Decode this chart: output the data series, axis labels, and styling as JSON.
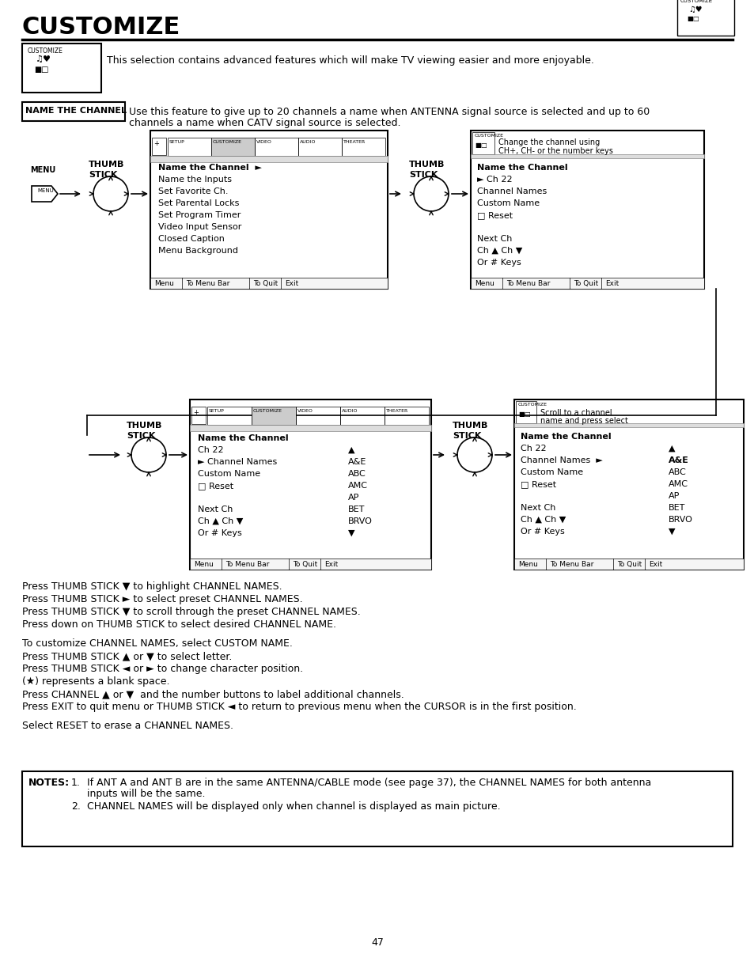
{
  "title": "CUSTOMIZE",
  "bg_color": "#ffffff",
  "text_color": "#000000",
  "page_number": "47",
  "intro_text": "This selection contains advanced features which will make TV viewing easier and more enjoyable.",
  "name_channel_label": "NAME THE CHANNEL",
  "name_channel_desc_1": "Use this feature to give up to 20 channels a name when ANTENNA signal source is selected and up to 60",
  "name_channel_desc_2": "channels a name when CATV signal source is selected.",
  "screen1_menu_items": [
    "Name the Channel  ►",
    "Name the Inputs",
    "Set Favorite Ch.",
    "Set Parental Locks",
    "Set Program Timer",
    "Video Input Sensor",
    "Closed Caption",
    "Menu Background"
  ],
  "screen1_tabs": [
    "SETUP",
    "CUSTOMIZE",
    "VIDEO",
    "AUDIO",
    "THEATER"
  ],
  "screen1_bottom_items": [
    "Menu",
    "To Menu Bar",
    "To Quit",
    "Exit"
  ],
  "screen2_title": "Name the Channel",
  "screen2_items": [
    "► Ch 22",
    "Channel Names",
    "Custom Name",
    "□ Reset",
    "",
    "Next Ch",
    "Ch ▲ Ch ▼",
    "Or # Keys"
  ],
  "screen2_header_1": "Change the channel using",
  "screen2_header_2": "CH+, CH- or the number keys",
  "screen2_bottom_items": [
    "Menu",
    "To Menu Bar",
    "To Quit",
    "Exit"
  ],
  "screen3_title": "Name the Channel",
  "screen3_items_left": [
    "Ch 22",
    "► Channel Names",
    "Custom Name",
    "□ Reset",
    "",
    "Next Ch",
    "Ch ▲ Ch ▼",
    "Or # Keys"
  ],
  "screen3_items_right": [
    "▲",
    "A&E",
    "ABC",
    "AMC",
    "AP",
    "BET",
    "BRVO",
    "▼"
  ],
  "screen3_bottom_items": [
    "Menu",
    "To Menu Bar",
    "To Quit",
    "Exit"
  ],
  "screen4_title": "Name the Channel",
  "screen4_items_left": [
    "Ch 22",
    "Channel Names  ►",
    "Custom Name",
    "□ Reset",
    "",
    "Next Ch",
    "Ch ▲ Ch ▼",
    "Or # Keys"
  ],
  "screen4_items_right": [
    "▲",
    "A&E",
    "ABC",
    "AMC",
    "AP",
    "BET",
    "BRVO",
    "▼"
  ],
  "screen4_header_1": "Scroll to a channel",
  "screen4_header_2": "name and press select",
  "screen4_bold_right": "A&E",
  "screen4_bottom_items": [
    "Menu",
    "To Menu Bar",
    "To Quit",
    "Exit"
  ],
  "instructions": [
    "Press THUMB STICK ▼ to highlight CHANNEL NAMES.",
    "Press THUMB STICK ► to select preset CHANNEL NAMES.",
    "Press THUMB STICK ▼ to scroll through the preset CHANNEL NAMES.",
    "Press down on THUMB STICK to select desired CHANNEL NAME."
  ],
  "instructions2": [
    "To customize CHANNEL NAMES, select CUSTOM NAME.",
    "Press THUMB STICK ▲ or ▼ to select letter.",
    "Press THUMB STICK ◄ or ► to change character position.",
    "(★) represents a blank space.",
    "Press CHANNEL ▲ or ▼  and the number buttons to label additional channels.",
    "Press EXIT to quit menu or THUMB STICK ◄ to return to previous menu when the CURSOR is in the first position."
  ],
  "select_reset": "Select RESET to erase a CHANNEL NAMES.",
  "notes_label": "NOTES:",
  "note1_num": "1.",
  "note1_text": "If ANT A and ANT B are in the same ANTENNA/CABLE mode (see page 37), the CHANNEL NAMES for both antenna",
  "note1_text2": "inputs will be the same.",
  "note2_num": "2.",
  "note2_text": "CHANNEL NAMES will be displayed only when channel is displayed as main picture."
}
